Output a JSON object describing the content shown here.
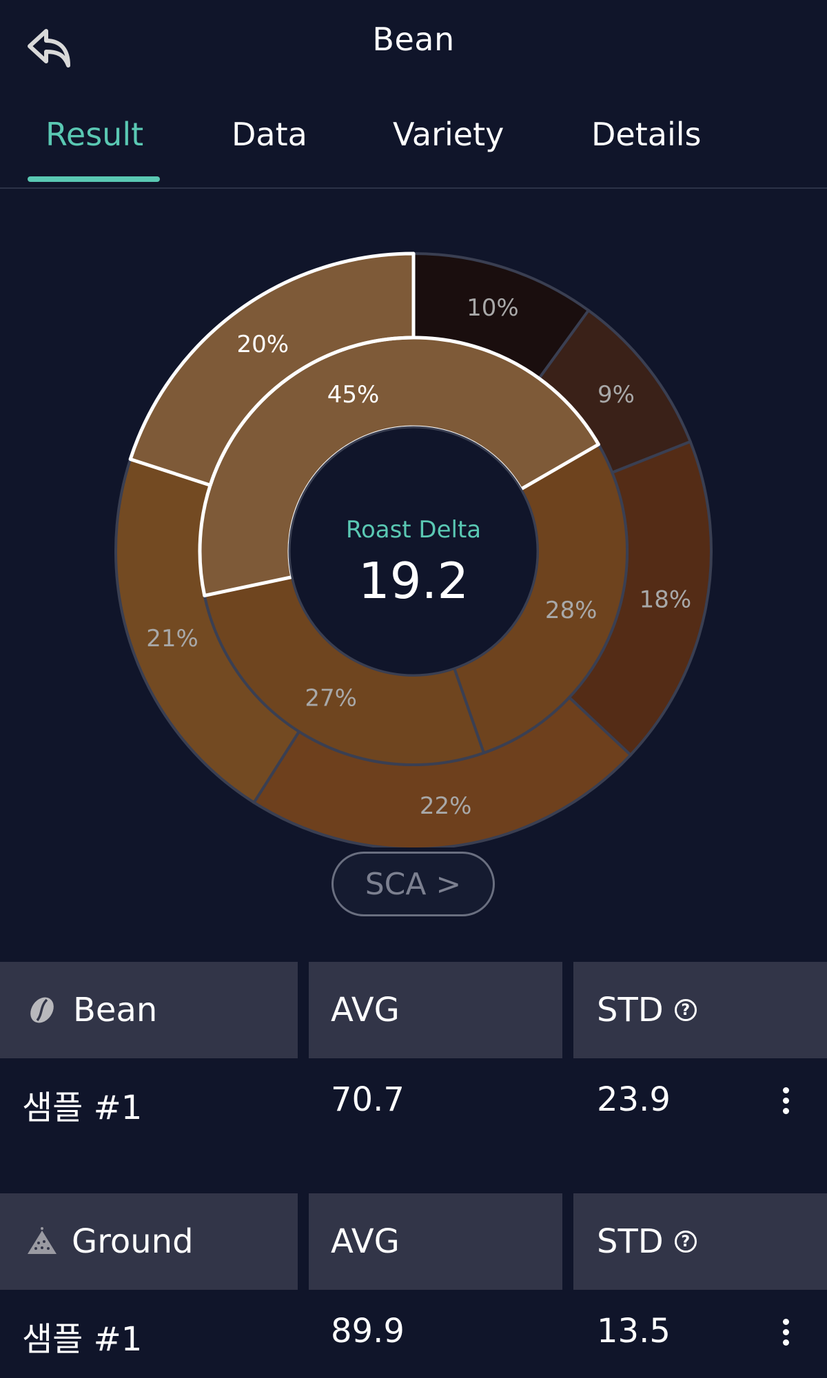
{
  "header": {
    "title": "Bean",
    "back_icon": "back-arrow-icon"
  },
  "tabs": [
    {
      "label": "Result",
      "active": true
    },
    {
      "label": "Data",
      "active": false
    },
    {
      "label": "Variety",
      "active": false
    },
    {
      "label": "Details",
      "active": false
    }
  ],
  "colors": {
    "accent": "#5ac8b3",
    "background": "#10152a",
    "header_cell": "#323548"
  },
  "chart_data": {
    "type": "donut",
    "center_label": "Roast Delta",
    "center_value": "19.2",
    "rings": [
      {
        "name": "outer",
        "segments": [
          {
            "label": "10%",
            "value": 10,
            "color": "#1a0e0e",
            "label_color": "#a8a8a8"
          },
          {
            "label": "9%",
            "value": 9,
            "color": "#3a2118",
            "label_color": "#a8a8a8"
          },
          {
            "label": "18%",
            "value": 18,
            "color": "#542c16",
            "label_color": "#a8a8a8"
          },
          {
            "label": "22%",
            "value": 22,
            "color": "#6e401d",
            "label_color": "#a8a8a8"
          },
          {
            "label": "21%",
            "value": 21,
            "color": "#734a22",
            "label_color": "#a8a8a8"
          },
          {
            "label": "20%",
            "value": 20,
            "color": "#7e5a38",
            "label_color": "#ffffff",
            "highlight": true
          }
        ]
      },
      {
        "name": "inner",
        "segments": [
          {
            "label": "28%",
            "value": 28,
            "color": "#6e431e",
            "label_color": "#a8a8a8"
          },
          {
            "label": "27%",
            "value": 27,
            "color": "#6f451f",
            "label_color": "#a8a8a8"
          },
          {
            "label": "45%",
            "value": 45,
            "color": "#7e5a38",
            "label_color": "#ffffff",
            "highlight": true
          }
        ]
      }
    ]
  },
  "sca_button": {
    "label": "SCA >"
  },
  "stats": [
    {
      "name": "Bean",
      "icon": "coffee-bean-icon",
      "avg_label": "AVG",
      "std_label": "STD",
      "help_icon": "help-circle-icon",
      "rows": [
        {
          "sample": "샘플 #1",
          "avg": "70.7",
          "std": "23.9"
        }
      ]
    },
    {
      "name": "Ground",
      "icon": "ground-coffee-icon",
      "avg_label": "AVG",
      "std_label": "STD",
      "help_icon": "help-circle-icon",
      "rows": [
        {
          "sample": "샘플 #1",
          "avg": "89.9",
          "std": "13.5"
        }
      ]
    }
  ]
}
